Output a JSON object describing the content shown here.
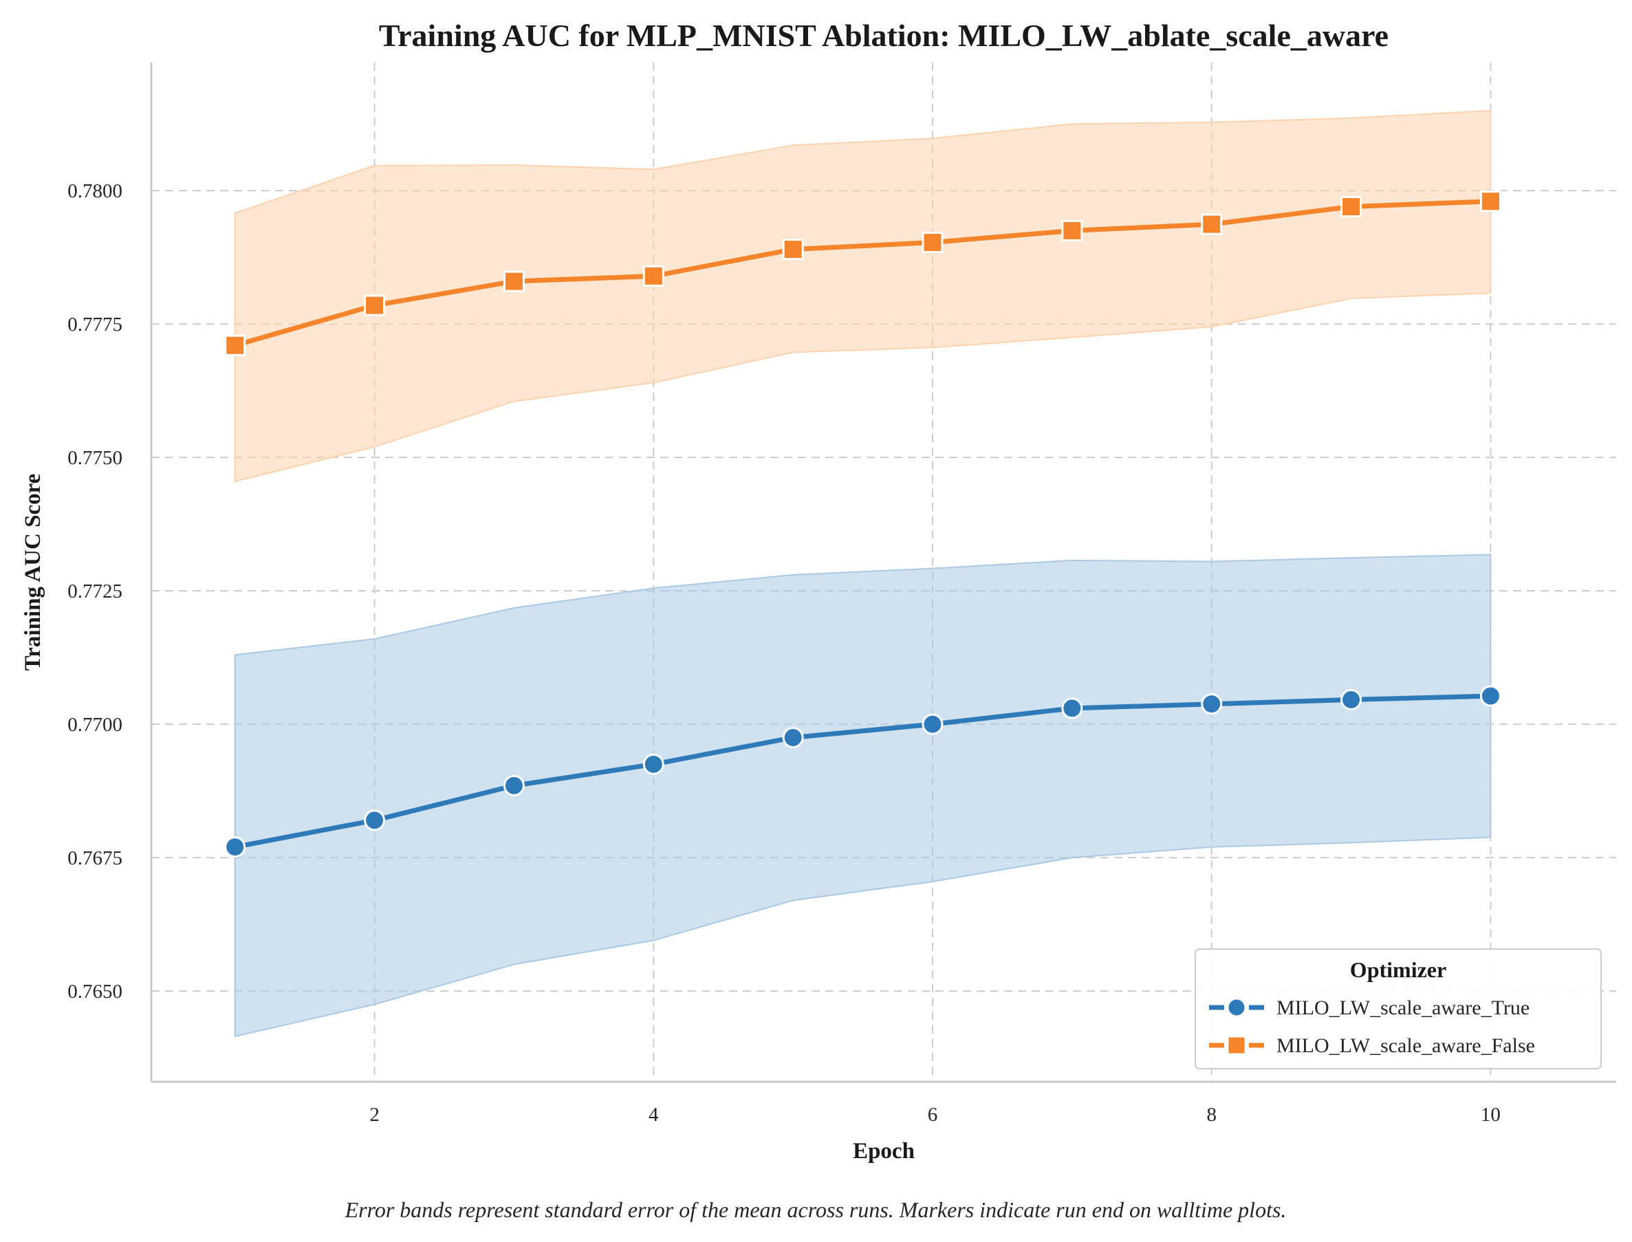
{
  "chart_data": {
    "type": "line",
    "title": "Training AUC for MLP_MNIST Ablation: MILO_LW_ablate_scale_aware",
    "xlabel": "Epoch",
    "ylabel": "Training AUC Score",
    "x": [
      1,
      2,
      3,
      4,
      5,
      6,
      7,
      8,
      9,
      10
    ],
    "xlim": [
      0.4,
      10.9
    ],
    "ylim": [
      0.7633,
      0.7824
    ],
    "xticks": [
      2,
      4,
      6,
      8,
      10
    ],
    "xtick_labels": [
      "2",
      "4",
      "6",
      "8",
      "10"
    ],
    "yticks": [
      0.765,
      0.7675,
      0.77,
      0.7725,
      0.775,
      0.7775,
      0.78
    ],
    "ytick_labels": [
      "0.7650",
      "0.7675",
      "0.7700",
      "0.7725",
      "0.7750",
      "0.7775",
      "0.7800"
    ],
    "grid": true,
    "legend": {
      "title": "Optimizer",
      "position": "bottom-right"
    },
    "series": [
      {
        "name": "MILO_LW_scale_aware_True",
        "color": "#2e7ab8",
        "band_color": "#a9c9e4",
        "marker": "circle",
        "values": [
          0.7677,
          0.7682,
          0.76885,
          0.76925,
          0.76975,
          0.77,
          0.7703,
          0.77038,
          0.77046,
          0.77053
        ],
        "lower": [
          0.76415,
          0.76475,
          0.7655,
          0.76595,
          0.7667,
          0.76705,
          0.7675,
          0.7677,
          0.76778,
          0.76788
        ],
        "upper": [
          0.7713,
          0.7716,
          0.77218,
          0.77255,
          0.7728,
          0.77292,
          0.77307,
          0.77305,
          0.77312,
          0.77318
        ]
      },
      {
        "name": "MILO_LW_scale_aware_False",
        "color": "#f5842a",
        "band_color": "#fcd3ae",
        "marker": "square",
        "values": [
          0.7771,
          0.77785,
          0.7783,
          0.7784,
          0.7789,
          0.77903,
          0.77925,
          0.77937,
          0.7797,
          0.7798
        ],
        "lower": [
          0.77455,
          0.7752,
          0.77605,
          0.7764,
          0.77697,
          0.77706,
          0.77725,
          0.77745,
          0.77798,
          0.77808
        ],
        "upper": [
          0.77958,
          0.78047,
          0.78048,
          0.7804,
          0.78085,
          0.78098,
          0.78125,
          0.78128,
          0.78136,
          0.7815
        ]
      }
    ]
  },
  "caption": "Error bands represent standard error of the mean across runs. Markers indicate run end on walltime plots."
}
